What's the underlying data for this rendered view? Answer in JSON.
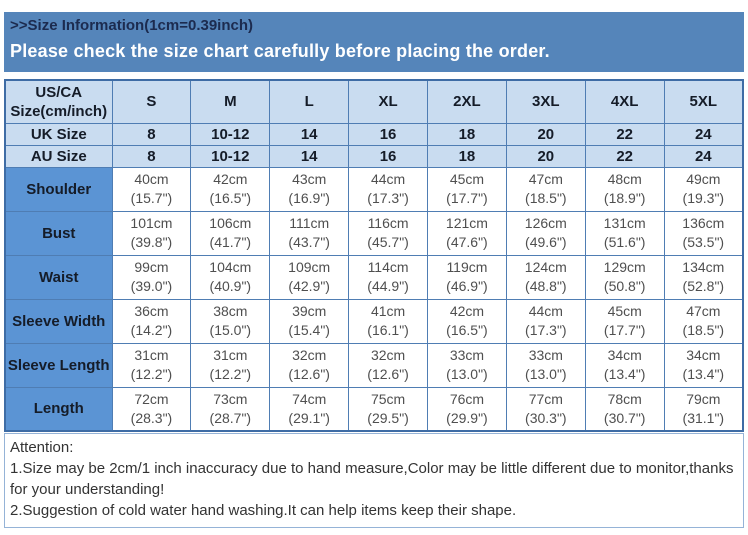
{
  "banner": {
    "title": ">>Size Information(1cm=0.39inch)",
    "subtitle": "Please check the size chart carefully before placing the order."
  },
  "colors": {
    "banner_bg": "#5585ba",
    "banner_title": "#1c2b4f",
    "banner_subtitle": "#ffffff",
    "header_row_bg": "#c9dcf0",
    "label_column_bg": "#5b94d4",
    "table_border": "#4f7db3",
    "table_outline": "#3e6ca5",
    "data_text": "#4f4f4f",
    "header_text": "#151c28",
    "attention_text": "#333333",
    "attention_border": "#95b3d7"
  },
  "table": {
    "corner": {
      "line1": "US/CA",
      "line2": "Size(cm/inch)"
    },
    "columns": [
      "S",
      "M",
      "L",
      "XL",
      "2XL",
      "3XL",
      "4XL",
      "5XL"
    ],
    "uk": {
      "label": "UK Size",
      "values": [
        "8",
        "10-12",
        "14",
        "16",
        "18",
        "20",
        "22",
        "24"
      ]
    },
    "au": {
      "label": "AU Size",
      "values": [
        "8",
        "10-12",
        "14",
        "16",
        "18",
        "20",
        "22",
        "24"
      ]
    },
    "measurements": [
      {
        "label": "Shoulder",
        "cm": [
          "40cm",
          "42cm",
          "43cm",
          "44cm",
          "45cm",
          "47cm",
          "48cm",
          "49cm"
        ],
        "inch": [
          "(15.7\")",
          "(16.5\")",
          "(16.9\")",
          "(17.3\")",
          "(17.7\")",
          "(18.5\")",
          "(18.9\")",
          "(19.3\")"
        ]
      },
      {
        "label": "Bust",
        "cm": [
          "101cm",
          "106cm",
          "111cm",
          "116cm",
          "121cm",
          "126cm",
          "131cm",
          "136cm"
        ],
        "inch": [
          "(39.8\")",
          "(41.7\")",
          "(43.7\")",
          "(45.7\")",
          "(47.6\")",
          "(49.6\")",
          "(51.6\")",
          "(53.5\")"
        ]
      },
      {
        "label": "Waist",
        "cm": [
          "99cm",
          "104cm",
          "109cm",
          "114cm",
          "119cm",
          "124cm",
          "129cm",
          "134cm"
        ],
        "inch": [
          "(39.0\")",
          "(40.9\")",
          "(42.9\")",
          "(44.9\")",
          "(46.9\")",
          "(48.8\")",
          "(50.8\")",
          "(52.8\")"
        ]
      },
      {
        "label": "Sleeve Width",
        "cm": [
          "36cm",
          "38cm",
          "39cm",
          "41cm",
          "42cm",
          "44cm",
          "45cm",
          "47cm"
        ],
        "inch": [
          "(14.2\")",
          "(15.0\")",
          "(15.4\")",
          "(16.1\")",
          "(16.5\")",
          "(17.3\")",
          "(17.7\")",
          "(18.5\")"
        ]
      },
      {
        "label": "Sleeve Length",
        "cm": [
          "31cm",
          "31cm",
          "32cm",
          "32cm",
          "33cm",
          "33cm",
          "34cm",
          "34cm"
        ],
        "inch": [
          "(12.2\")",
          "(12.2\")",
          "(12.6\")",
          "(12.6\")",
          "(13.0\")",
          "(13.0\")",
          "(13.4\")",
          "(13.4\")"
        ]
      },
      {
        "label": "Length",
        "cm": [
          "72cm",
          "73cm",
          "74cm",
          "75cm",
          "76cm",
          "77cm",
          "78cm",
          "79cm"
        ],
        "inch": [
          "(28.3\")",
          "(28.7\")",
          "(29.1\")",
          "(29.5\")",
          "(29.9\")",
          "(30.3\")",
          "(30.7\")",
          "(31.1\")"
        ]
      }
    ]
  },
  "attention": {
    "heading": "Attention:",
    "note1": "1.Size may be 2cm/1 inch inaccuracy due to hand measure,Color may be little different due to monitor,thanks for your understanding!",
    "note2": "2.Suggestion of cold water hand washing.It can help items keep their shape."
  }
}
